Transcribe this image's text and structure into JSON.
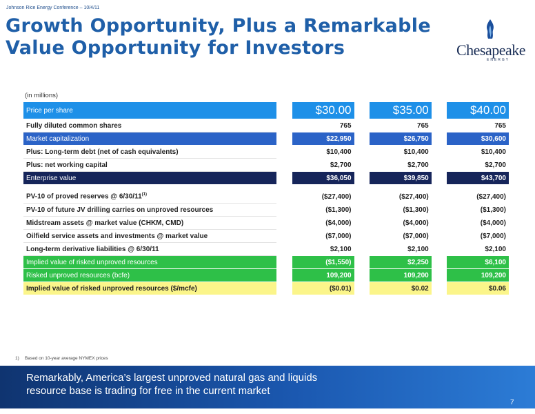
{
  "header": {
    "conference": "Johnson Rice Energy Conference – 10/4/11",
    "title_line1": "Growth Opportunity, Plus a Remarkable",
    "title_line2": "Value Opportunity for Investors"
  },
  "logo": {
    "name": "Chesapeake",
    "sub": "ENERGY"
  },
  "units_note": "(in millions)",
  "table": {
    "price_label": "Price per share",
    "prices": [
      "$30.00",
      "$35.00",
      "$40.00"
    ],
    "rows": [
      {
        "label": "Fully diluted common shares",
        "values": [
          "765",
          "765",
          "765"
        ]
      },
      {
        "label": "Market capitalization",
        "values": [
          "$22,950",
          "$26,750",
          "$30,600"
        ]
      },
      {
        "label": "Plus: Long-term debt (net of cash equivalents)",
        "values": [
          "$10,400",
          "$10,400",
          "$10,400"
        ]
      },
      {
        "label": "Plus: net working capital",
        "values": [
          "$2,700",
          "$2,700",
          "$2,700"
        ]
      },
      {
        "label": "Enterprise value",
        "values": [
          "$36,050",
          "$39,850",
          "$43,700"
        ]
      },
      {
        "label": "PV-10 of proved reserves @ 6/30/11",
        "sup": "(1)",
        "values": [
          "($27,400)",
          "($27,400)",
          "($27,400)"
        ]
      },
      {
        "label": "PV-10 of future JV drilling carries on unproved resources",
        "values": [
          "($1,300)",
          "($1,300)",
          "($1,300)"
        ]
      },
      {
        "label": "Midstream assets @ market value (CHKM, CMD)",
        "values": [
          "($4,000)",
          "($4,000)",
          "($4,000)"
        ]
      },
      {
        "label": "Oilfield service assets and investments @ market value",
        "values": [
          "($7,000)",
          "($7,000)",
          "($7,000)"
        ]
      },
      {
        "label": "Long-term derivative liabilities @ 6/30/11",
        "values": [
          "$2,100",
          "$2,100",
          "$2,100"
        ]
      },
      {
        "label": "Implied value of risked unproved resources",
        "values": [
          "($1,550)",
          "$2,250",
          "$6,100"
        ]
      },
      {
        "label": "Risked unproved resources (bcfe)",
        "values": [
          "109,200",
          "109,200",
          "109,200"
        ]
      },
      {
        "label": "Implied value of risked unproved resources ($/mcfe)",
        "values": [
          "($0.01)",
          "$0.02",
          "$0.06"
        ]
      }
    ]
  },
  "footnote": {
    "num": "1)",
    "text": "Based on 10-year average NYMEX prices"
  },
  "banner": {
    "line1": "Remarkably, America’s largest unproved natural gas and liquids",
    "line2": "resource base is trading for free in the current market"
  },
  "page_number": "7",
  "colors": {
    "price_row": "#1e90e8",
    "market_cap_row": "#2b63c7",
    "enterprise_row": "#16255a",
    "green_rows": "#2ec048",
    "yellow_row": "#fbf58a",
    "title": "#1f5fa8"
  }
}
